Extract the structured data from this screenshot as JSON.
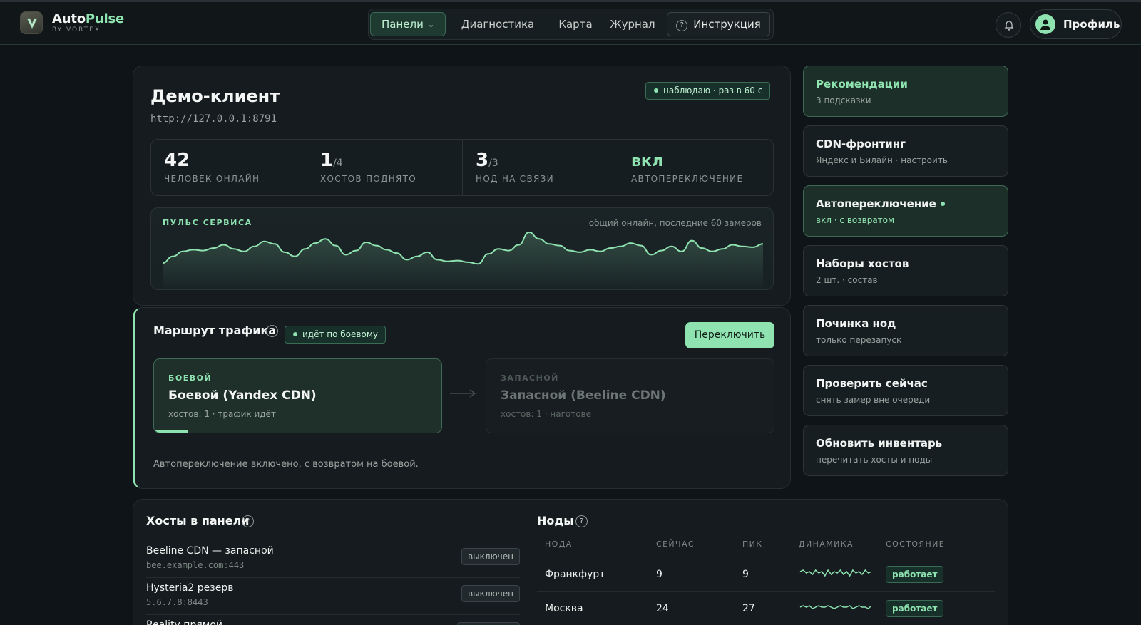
{
  "header": {
    "brand_main": "Auto",
    "brand_accent": "Pulse",
    "brand_sub": "BY VORTEX",
    "nav": [
      {
        "label": "Панели",
        "active": true
      },
      {
        "label": "Диагностика"
      },
      {
        "label": "Карта"
      },
      {
        "label": "Журнал"
      },
      {
        "label": "Инструкция"
      }
    ],
    "help_glyph": "?",
    "profile_label": "Профиль",
    "icons": {
      "logo": "v-heart-logo-icon",
      "bell": "bell-icon",
      "avatar": "user-icon",
      "chevron": "chevron-down-icon"
    }
  },
  "client": {
    "title": "Демо-клиент",
    "url": "http://127.0.0.1:8791",
    "watch_badge": "наблюдаю · раз в 60 с",
    "stats": [
      {
        "value": "42",
        "suffix": "",
        "label": "ЧЕЛОВЕК ОНЛАЙН"
      },
      {
        "value": "1",
        "suffix": "/4",
        "label": "ХОСТОВ ПОДНЯТО"
      },
      {
        "value": "3",
        "suffix": "/3",
        "label": "НОД НА СВЯЗИ"
      },
      {
        "value": "вкл",
        "suffix": "",
        "label": "АВТОПЕРЕКЛЮЧЕНИЕ"
      }
    ],
    "pulse_title": "ПУЛЬС СЕРВИСА",
    "pulse_note": "общий онлайн, последние 60 замеров",
    "pulse_values": [
      18,
      26,
      32,
      34,
      33,
      36,
      40,
      35,
      32,
      38,
      44,
      41,
      31,
      26,
      35,
      42,
      47,
      39,
      28,
      33,
      43,
      39,
      34,
      30,
      22,
      26,
      31,
      22,
      20,
      21,
      19,
      17,
      29,
      35,
      33,
      40,
      55,
      47,
      41,
      39,
      33,
      31,
      34,
      32,
      36,
      38,
      42,
      39,
      28,
      33,
      38,
      32,
      45,
      36,
      32,
      35,
      40,
      38,
      37,
      41
    ],
    "accent_color": "#8fe3b0"
  },
  "route": {
    "title": "Маршрут трафика",
    "help_glyph": "?",
    "badge": "идёт по боевому",
    "switch_label": "Переключить",
    "main": {
      "tag": "БОЕВОЙ",
      "name": "Боевой (Yandex CDN)",
      "meta": "хостов: 1 · трафик идёт",
      "progress": 0.12
    },
    "spare": {
      "tag": "ЗАПАСНОЙ",
      "name": "Запасной (Beeline CDN)",
      "meta": "хостов: 1 · наготове"
    },
    "footer": "Автопереключение включено, с возвратом на боевой."
  },
  "side": [
    {
      "title": "Рекомендации",
      "sub": "3 подсказки"
    },
    {
      "title": "CDN-фронтинг",
      "sub": "Яндекс и Билайн · настроить"
    },
    {
      "title": "Автопереключение",
      "sub": "вкл · с возвратом"
    },
    {
      "title": "Наборы хостов",
      "sub": "2 шт. · состав"
    },
    {
      "title": "Починка нод",
      "sub": "только перезапуск"
    },
    {
      "title": "Проверить сейчас",
      "sub": "снять замер вне очереди"
    },
    {
      "title": "Обновить инвентарь",
      "sub": "перечитать хосты и ноды"
    }
  ],
  "hosts": {
    "title": "Хосты в панели",
    "help_glyph": "?",
    "rows": [
      {
        "name": "Beeline CDN — запасной",
        "addr": "bee.example.com:443",
        "state": "выключен"
      },
      {
        "name": "Hysteria2 резерв",
        "addr": "5.6.7.8:8443",
        "state": "выключен"
      },
      {
        "name": "Reality прямой",
        "addr": "",
        "state": ""
      }
    ]
  },
  "nodes": {
    "title": "Ноды",
    "help_glyph": "?",
    "headers": [
      "НОДА",
      "СЕЙЧАС",
      "ПИК",
      "ДИНАМИКА",
      "СОСТОЯНИЕ"
    ],
    "rows": [
      {
        "name": "Франкфурт",
        "now": "9",
        "peak": "9",
        "state": "работает",
        "trend": [
          5,
          6,
          4,
          5,
          3,
          6,
          4,
          5,
          2,
          6,
          3,
          5,
          4,
          6,
          3,
          5,
          2,
          6,
          4,
          5,
          3,
          6,
          4,
          5
        ]
      },
      {
        "name": "Москва",
        "now": "24",
        "peak": "27",
        "state": "работает",
        "trend": [
          4,
          5,
          4,
          5,
          3,
          4,
          5,
          4,
          4,
          5,
          4,
          3,
          4,
          5,
          4,
          4,
          5,
          3,
          4,
          5,
          4,
          4,
          3,
          5
        ]
      }
    ]
  }
}
